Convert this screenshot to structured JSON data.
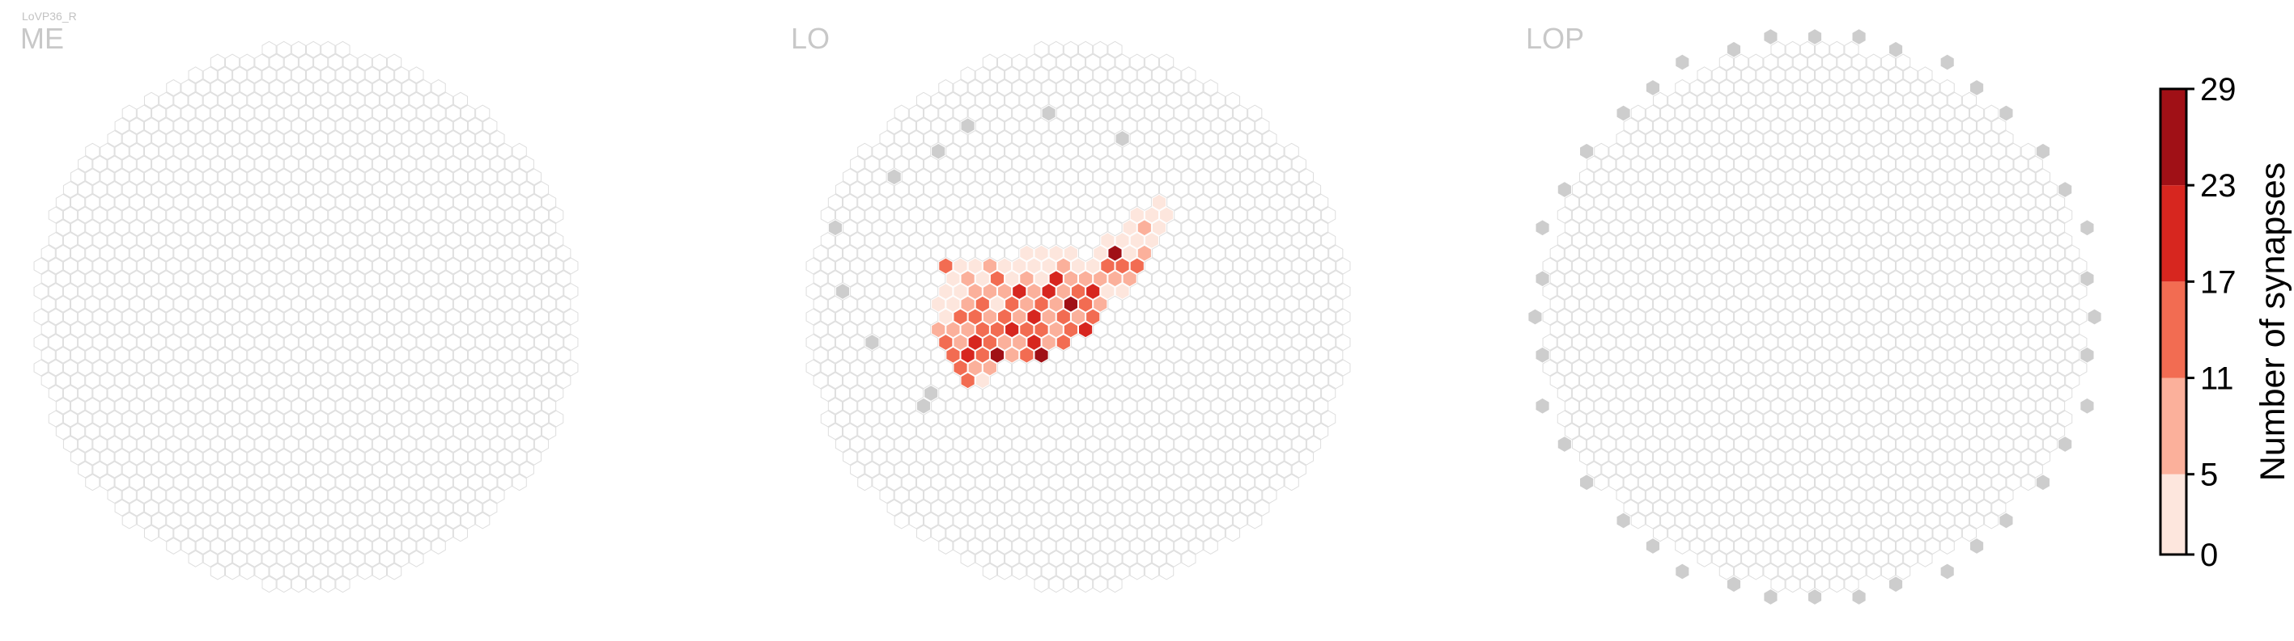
{
  "figure_title": "LoVP36_R",
  "chart_data": {
    "type": "heatmap",
    "title": "LoVP36_R",
    "panels": [
      {
        "name": "ME",
        "hexes": [],
        "gray": []
      },
      {
        "name": "LO",
        "hexes": [
          [
            -10,
            5,
            12
          ],
          [
            -10,
            4,
            16
          ],
          [
            -10,
            3,
            13
          ],
          [
            -10,
            2,
            13
          ],
          [
            -10,
            1,
            9
          ],
          [
            -9,
            5,
            3
          ],
          [
            -9,
            4,
            9
          ],
          [
            -9,
            3,
            19
          ],
          [
            -9,
            2,
            10
          ],
          [
            -9,
            1,
            6
          ],
          [
            -9,
            0,
            2
          ],
          [
            -9,
            -1,
            3
          ],
          [
            -8,
            4,
            8
          ],
          [
            -8,
            3,
            15
          ],
          [
            -8,
            2,
            21
          ],
          [
            -8,
            1,
            9
          ],
          [
            -8,
            0,
            13
          ],
          [
            -8,
            -1,
            3
          ],
          [
            -8,
            -2,
            4
          ],
          [
            -7,
            3,
            25
          ],
          [
            -7,
            2,
            13
          ],
          [
            -7,
            1,
            16
          ],
          [
            -7,
            0,
            15
          ],
          [
            -7,
            -1,
            7
          ],
          [
            -7,
            -2,
            3
          ],
          [
            -7,
            -3,
            5
          ],
          [
            -7,
            -4,
            12
          ],
          [
            -6,
            3,
            7
          ],
          [
            -6,
            2,
            11
          ],
          [
            -6,
            1,
            15
          ],
          [
            -6,
            0,
            9
          ],
          [
            -6,
            -1,
            13
          ],
          [
            -6,
            -2,
            10
          ],
          [
            -6,
            -3,
            7
          ],
          [
            -6,
            -4,
            3
          ],
          [
            -5,
            3,
            17
          ],
          [
            -5,
            2,
            11
          ],
          [
            -5,
            1,
            20
          ],
          [
            -5,
            0,
            12
          ],
          [
            -5,
            -1,
            4
          ],
          [
            -5,
            -2,
            8
          ],
          [
            -5,
            -3,
            3
          ],
          [
            -5,
            -4,
            2
          ],
          [
            -4,
            3,
            26
          ],
          [
            -4,
            2,
            19
          ],
          [
            -4,
            1,
            13
          ],
          [
            -4,
            0,
            6
          ],
          [
            -4,
            -1,
            14
          ],
          [
            -4,
            -2,
            10
          ],
          [
            -4,
            -3,
            14
          ],
          [
            -4,
            -4,
            6
          ],
          [
            -3,
            2,
            8
          ],
          [
            -3,
            1,
            15
          ],
          [
            -3,
            0,
            22
          ],
          [
            -3,
            -1,
            8
          ],
          [
            -3,
            -2,
            19
          ],
          [
            -3,
            -3,
            5
          ],
          [
            -3,
            -4,
            3
          ],
          [
            -2,
            2,
            12
          ],
          [
            -2,
            1,
            10
          ],
          [
            -2,
            0,
            7
          ],
          [
            -2,
            -1,
            16
          ],
          [
            -2,
            -2,
            6
          ],
          [
            -2,
            -3,
            9
          ],
          [
            -2,
            -4,
            4
          ],
          [
            -1,
            1,
            13
          ],
          [
            -1,
            0,
            17
          ],
          [
            -1,
            -1,
            11
          ],
          [
            -1,
            -2,
            21
          ],
          [
            -1,
            -3,
            4
          ],
          [
            -1,
            -4,
            3
          ],
          [
            -1,
            -5,
            2
          ],
          [
            0,
            1,
            18
          ],
          [
            0,
            0,
            9
          ],
          [
            0,
            -1,
            26
          ],
          [
            0,
            -2,
            7
          ],
          [
            0,
            -3,
            22
          ],
          [
            0,
            -4,
            5
          ],
          [
            0,
            -5,
            3
          ],
          [
            1,
            0,
            12
          ],
          [
            1,
            -1,
            16
          ],
          [
            1,
            -2,
            13
          ],
          [
            1,
            -3,
            11
          ],
          [
            1,
            -4,
            6
          ],
          [
            1,
            -5,
            2
          ],
          [
            2,
            -1,
            8
          ],
          [
            2,
            -2,
            21
          ],
          [
            2,
            -3,
            8
          ],
          [
            2,
            -4,
            4
          ],
          [
            2,
            -5,
            3
          ],
          [
            3,
            -2,
            5
          ],
          [
            3,
            -3,
            10
          ],
          [
            3,
            -4,
            5
          ],
          [
            4,
            -2,
            4
          ],
          [
            4,
            -3,
            6
          ],
          [
            4,
            -4,
            17
          ],
          [
            4,
            -5,
            3
          ],
          [
            5,
            -3,
            8
          ],
          [
            5,
            -4,
            13
          ],
          [
            5,
            -5,
            25
          ],
          [
            5,
            -6,
            5
          ],
          [
            6,
            -4,
            12
          ],
          [
            6,
            -5,
            4
          ],
          [
            6,
            -6,
            3
          ],
          [
            7,
            -5,
            7
          ],
          [
            7,
            -6,
            2
          ],
          [
            7,
            -7,
            4
          ],
          [
            8,
            -6,
            3
          ],
          [
            8,
            -7,
            6
          ],
          [
            8,
            -8,
            3
          ],
          [
            9,
            -7,
            3
          ],
          [
            9,
            -8,
            2
          ],
          [
            10,
            -8,
            2
          ],
          [
            10,
            -9,
            3
          ]
        ],
        "gray": [
          [
            -14,
            7
          ],
          [
            -13,
            6
          ],
          [
            -7,
            -11
          ],
          [
            -3,
            -13
          ],
          [
            0,
            -15
          ],
          [
            6,
            -16
          ],
          [
            10,
            -14
          ],
          [
            -15,
            2
          ],
          [
            -15,
            -2
          ],
          [
            -13,
            -7
          ]
        ]
      },
      {
        "name": "LOP",
        "hexes": [],
        "gray": []
      }
    ],
    "colorbar": {
      "label": "Number of synapses",
      "ticks": [
        0,
        5,
        11,
        17,
        23,
        29
      ],
      "colors": [
        "#fde6dd",
        "#fbb09b",
        "#f26c52",
        "#d7261f",
        "#a01016"
      ]
    },
    "colors": {
      "grid_stroke": "#dedede",
      "gray_fill": "#cdcdcd",
      "panel_label": "#c8c8c8"
    }
  }
}
